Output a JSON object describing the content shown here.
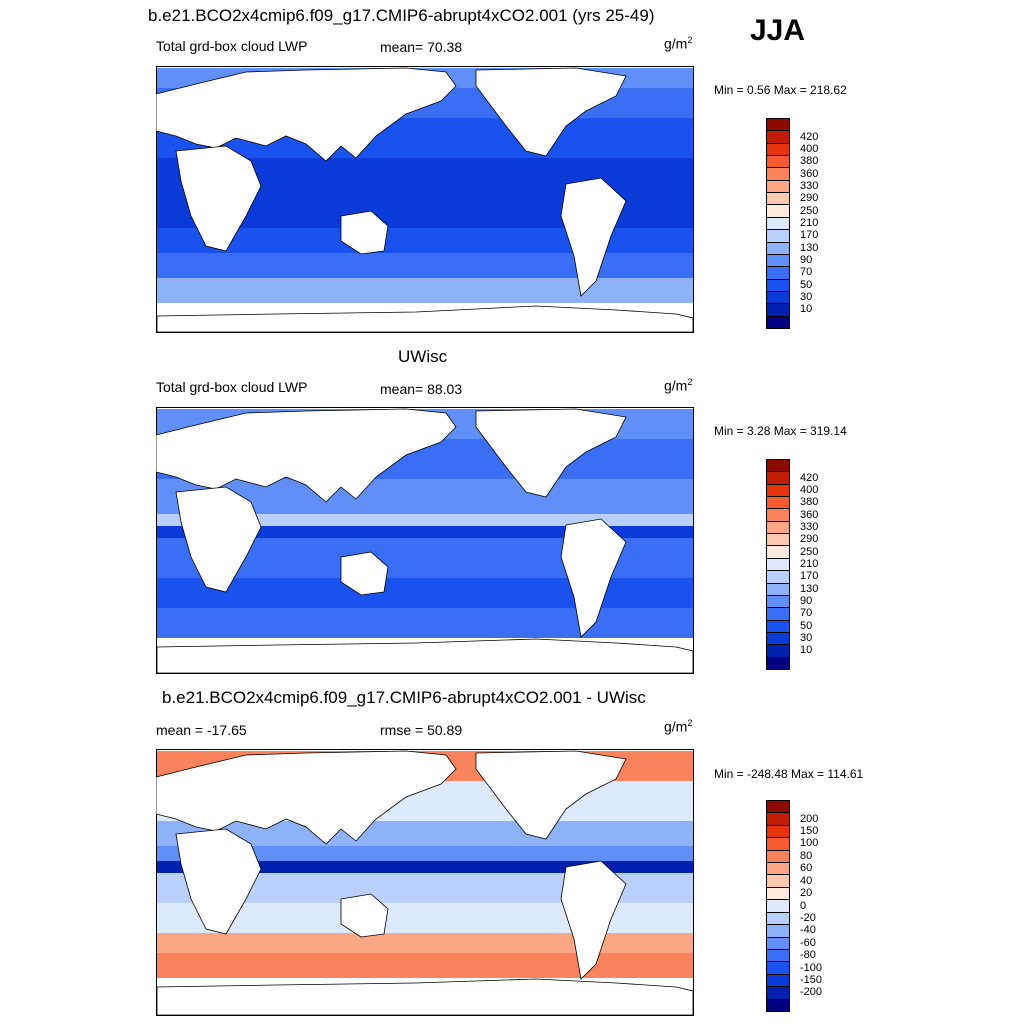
{
  "season": "JJA",
  "units_base": "g/m",
  "units_exp": "2",
  "panels": [
    {
      "title": "b.e21.BCO2x4cmip6.f09_g17.CMIP6-abrupt4xCO2.001 (yrs 25-49)",
      "left_label": "Total grd-box cloud LWP",
      "stat_label": "mean=  70.38",
      "minmax": "Min =   0.56 Max = 218.62",
      "colors": [
        "#000080",
        "#0020b0",
        "#0a3ad8",
        "#1a52f0",
        "#3a6ef5",
        "#6090f7",
        "#8eb2f8",
        "#b8d0fb",
        "#dde9fd",
        "#fde9dd",
        "#fcc9b0",
        "#fba685",
        "#f9835c",
        "#f65a30",
        "#e6340e",
        "#c01c06",
        "#8c0a00"
      ],
      "ticks": [
        "10",
        "30",
        "50",
        "70",
        "90",
        "130",
        "170",
        "210",
        "250",
        "290",
        "330",
        "360",
        "380",
        "400",
        "420"
      ]
    },
    {
      "title": "UWisc",
      "left_label": "Total grd-box cloud LWP",
      "stat_label": "mean=  88.03",
      "minmax": "Min =   3.28 Max = 319.14",
      "colors": [
        "#000080",
        "#0020b0",
        "#0a3ad8",
        "#1a52f0",
        "#3a6ef5",
        "#6090f7",
        "#8eb2f8",
        "#b8d0fb",
        "#dde9fd",
        "#fde9dd",
        "#fcc9b0",
        "#fba685",
        "#f9835c",
        "#f65a30",
        "#e6340e",
        "#c01c06",
        "#8c0a00"
      ],
      "ticks": [
        "10",
        "30",
        "50",
        "70",
        "90",
        "130",
        "170",
        "210",
        "250",
        "290",
        "330",
        "360",
        "380",
        "400",
        "420"
      ]
    },
    {
      "title": "b.e21.BCO2x4cmip6.f09_g17.CMIP6-abrupt4xCO2.001 - UWisc",
      "left_label": "mean = -17.65",
      "stat_label": "rmse =  50.89",
      "minmax": "Min = -248.48 Max = 114.61",
      "colors": [
        "#000080",
        "#0020b0",
        "#0a3ad8",
        "#1a52f0",
        "#3a6ef5",
        "#6090f7",
        "#8eb2f8",
        "#b8d0fb",
        "#dde9fd",
        "#fde9dd",
        "#fcc9b0",
        "#fba685",
        "#f9835c",
        "#f65a30",
        "#e6340e",
        "#c01c06",
        "#8c0a00"
      ],
      "ticks": [
        "-200",
        "-150",
        "-100",
        "-80",
        "-60",
        "-40",
        "-20",
        "0",
        "20",
        "40",
        "60",
        "80",
        "100",
        "150",
        "200"
      ]
    }
  ]
}
